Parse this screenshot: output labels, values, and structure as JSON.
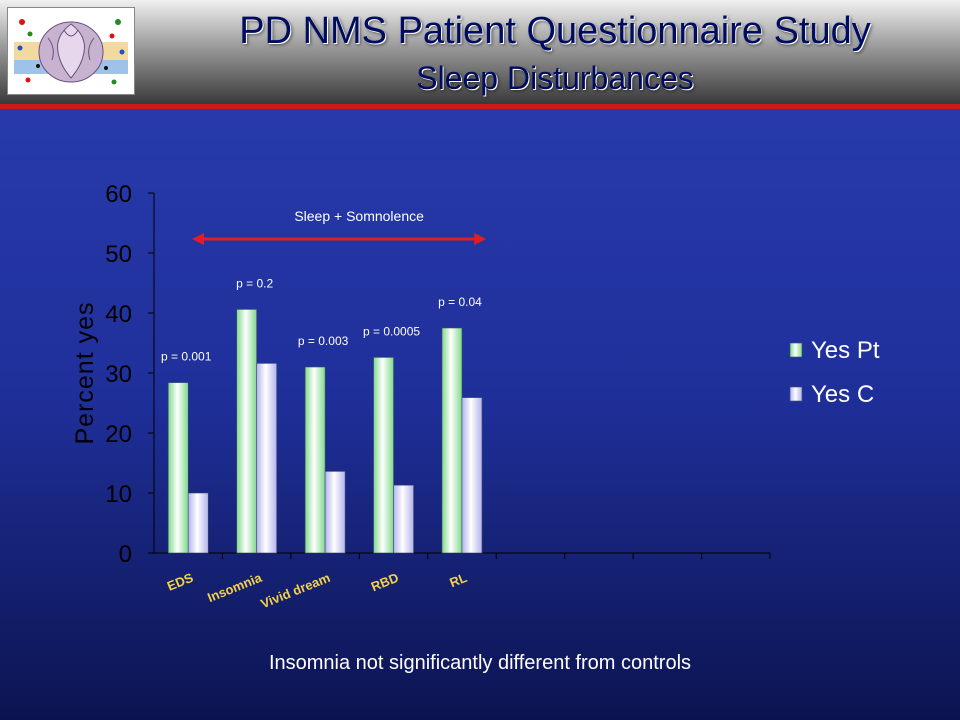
{
  "header": {
    "title": "PD NMS Patient Questionnaire Study",
    "subtitle": "Sleep Disturbances"
  },
  "footer_note": "Insomnia not significantly different from controls",
  "chart_data": {
    "type": "bar",
    "categories": [
      "EDS",
      "Insomnia",
      "Vivid dream",
      "RBD",
      "RL",
      "",
      "",
      "",
      ""
    ],
    "series": [
      {
        "name": "Yes Pt",
        "values": [
          28.4,
          40.6,
          31.0,
          32.6,
          37.5,
          null,
          null,
          null,
          null
        ],
        "color": "#7fd98a"
      },
      {
        "name": "Yes C",
        "values": [
          10.0,
          31.6,
          13.6,
          11.3,
          25.9,
          null,
          null,
          null,
          null
        ],
        "color": "#b3b3ee"
      }
    ],
    "ylabel": "Percent yes",
    "xlabel": "",
    "ylim": [
      0,
      60
    ],
    "yticks": [
      0,
      10,
      20,
      30,
      40,
      50,
      60
    ],
    "p_values": [
      "p = 0.001",
      "p = 0.2",
      "p = 0.003",
      "p = 0.0005",
      "p = 0.04"
    ],
    "bracket": {
      "label": "Sleep + Somnolence",
      "from_category": "EDS",
      "to_category": "RL"
    },
    "legend_position": "right",
    "grid": false,
    "colors": {
      "axis": "#000000",
      "tick_text": "#000000",
      "category_text": "#f2d24a",
      "annotation_text": "#ffffff",
      "bracket": "#e02020"
    }
  }
}
